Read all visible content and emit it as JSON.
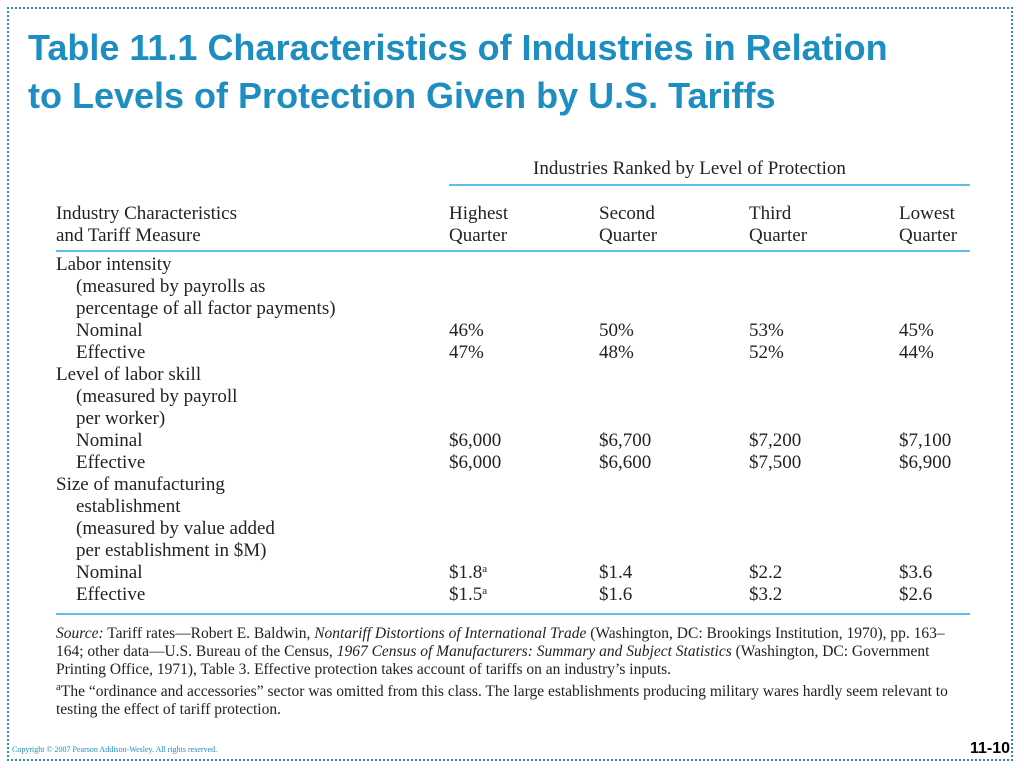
{
  "title_line1": "Table 11.1 Characteristics of Industries in Relation",
  "title_line2": "to Levels of Protection Given by U.S. Tariffs",
  "group_header": "Industries Ranked by Level of Protection",
  "col_headers": {
    "c0": [
      "Industry Characteristics",
      "and Tariff Measure"
    ],
    "c1": [
      "Highest",
      "Quarter"
    ],
    "c2": [
      "Second",
      "Quarter"
    ],
    "c3": [
      "Third",
      "Quarter"
    ],
    "c4": [
      "Lowest",
      "Quarter"
    ]
  },
  "rows": [
    {
      "label": "Labor intensity",
      "indent": 0,
      "values": [
        "",
        "",
        "",
        ""
      ]
    },
    {
      "label": "(measured by payrolls as",
      "indent": 1,
      "values": [
        "",
        "",
        "",
        ""
      ]
    },
    {
      "label": "percentage of all factor payments)",
      "indent": 1,
      "values": [
        "",
        "",
        "",
        ""
      ]
    },
    {
      "label": "Nominal",
      "indent": 1,
      "values": [
        "46%",
        "50%",
        "53%",
        "45%"
      ]
    },
    {
      "label": "Effective",
      "indent": 1,
      "values": [
        "47%",
        "48%",
        "52%",
        "44%"
      ]
    },
    {
      "label": "Level of labor skill",
      "indent": 0,
      "values": [
        "",
        "",
        "",
        ""
      ]
    },
    {
      "label": "(measured by payroll",
      "indent": 1,
      "values": [
        "",
        "",
        "",
        ""
      ]
    },
    {
      "label": "per worker)",
      "indent": 1,
      "values": [
        "",
        "",
        "",
        ""
      ]
    },
    {
      "label": "Nominal",
      "indent": 1,
      "values": [
        "$6,000",
        "$6,700",
        "$7,200",
        "$7,100"
      ]
    },
    {
      "label": "Effective",
      "indent": 1,
      "values": [
        "$6,000",
        "$6,600",
        "$7,500",
        "$6,900"
      ]
    },
    {
      "label": "Size of manufacturing",
      "indent": 0,
      "values": [
        "",
        "",
        "",
        ""
      ]
    },
    {
      "label": "establishment",
      "indent": 1,
      "values": [
        "",
        "",
        "",
        ""
      ]
    },
    {
      "label": "(measured by value added",
      "indent": 1,
      "values": [
        "",
        "",
        "",
        ""
      ]
    },
    {
      "label": "per establishment in $M)",
      "indent": 1,
      "values": [
        "",
        "",
        "",
        ""
      ]
    },
    {
      "label": "Nominal",
      "indent": 1,
      "values": [
        "$1.8",
        "$1.4",
        "$2.2",
        "$3.6"
      ],
      "sup": [
        "a",
        "",
        "",
        ""
      ]
    },
    {
      "label": "Effective",
      "indent": 1,
      "values": [
        "$1.5",
        "$1.6",
        "$3.2",
        "$2.6"
      ],
      "sup": [
        "a",
        "",
        "",
        ""
      ]
    }
  ],
  "source_note": {
    "label": "Source:",
    "t1": " Tariff rates—Robert E. Baldwin, ",
    "i1": "Nontariff Distortions of International Trade",
    "t2": " (Washington, DC: Brookings Institution, 1970), pp. 163–164; other data—U.S. Bureau of the Census, ",
    "i2": "1967 Census of Manufacturers: Summary and Subject Statistics",
    "t3": " (Washington, DC: Government Printing Office, 1971), Table 3. Effective protection takes account of tariffs on an industry’s inputs."
  },
  "footnote": {
    "marker": "a",
    "text": "The “ordinance and accessories” sector was omitted from this class. The large establishments producing military wares hardly seem relevant to testing the effect of tariff protection."
  },
  "copyright": "Copyright © 2007 Pearson Addison-Wesley. All rights reserved.",
  "slide_number": "11-10"
}
